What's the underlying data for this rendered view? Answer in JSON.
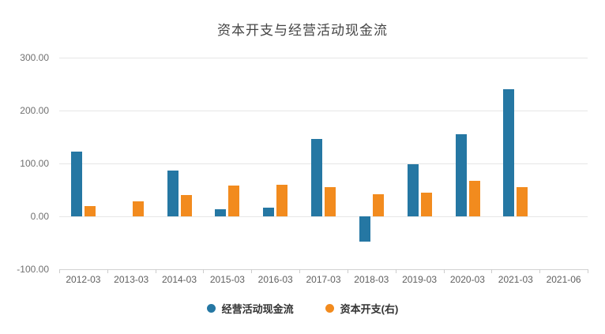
{
  "chart_data": {
    "type": "bar",
    "title": "资本开支与经营活动现金流",
    "categories": [
      "2012-03",
      "2013-03",
      "2014-03",
      "2015-03",
      "2016-03",
      "2017-03",
      "2018-03",
      "2019-03",
      "2020-03",
      "2021-03",
      "2021-06"
    ],
    "series": [
      {
        "name": "经营活动现金流",
        "axis": "left",
        "color": "#2577a3",
        "values": [
          122,
          null,
          86,
          13,
          17,
          146,
          -47,
          99,
          156,
          240,
          null
        ]
      },
      {
        "name": "资本开支(右)",
        "axis": "right",
        "color": "#f28b1e",
        "values": [
          20,
          28,
          40,
          58,
          60,
          55,
          42,
          45,
          67,
          56,
          null
        ]
      }
    ],
    "xlabel": "",
    "ylabel": "",
    "ylim": [
      -100,
      300
    ],
    "yticks": [
      {
        "value": 300,
        "label": "300.00"
      },
      {
        "value": 200,
        "label": "200.00"
      },
      {
        "value": 100,
        "label": "100.00"
      },
      {
        "value": 0,
        "label": "0.00"
      },
      {
        "value": -100,
        "label": "-100.00"
      }
    ],
    "grid": true,
    "legend_position": "bottom"
  },
  "colors": {
    "series_blue": "#2577a3",
    "series_orange": "#f28b1e",
    "grid_line": "#e6e6e6",
    "axis_line": "#d2d2d2",
    "title_text": "#444444",
    "tick_text": "#707070"
  }
}
